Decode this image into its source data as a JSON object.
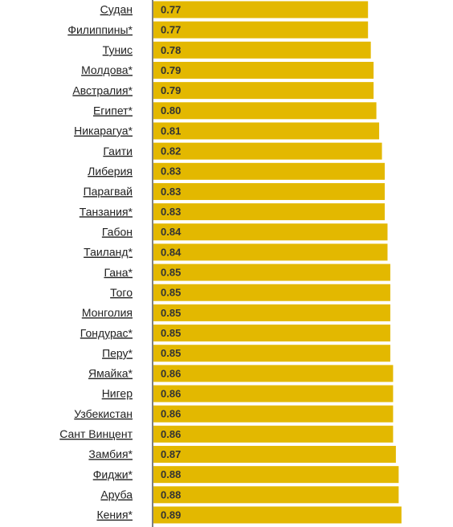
{
  "chart_data": {
    "type": "bar",
    "orientation": "horizontal",
    "categories": [
      "Судан",
      "Филиппины*",
      "Тунис",
      "Молдова*",
      "Австралия*",
      "Египет*",
      "Никарагуа*",
      "Гаити",
      "Либерия",
      "Парагвай",
      "Танзания*",
      "Габон",
      "Таиланд*",
      "Гана*",
      "Того",
      "Монголия",
      "Гондурас*",
      "Перу*",
      "Ямайка*",
      "Нигер",
      "Узбекистан",
      "Сант Винцент",
      "Замбия*",
      "Фиджи*",
      "Аруба",
      "Кения*"
    ],
    "values": [
      0.77,
      0.77,
      0.78,
      0.79,
      0.79,
      0.8,
      0.81,
      0.82,
      0.83,
      0.83,
      0.83,
      0.84,
      0.84,
      0.85,
      0.85,
      0.85,
      0.85,
      0.85,
      0.86,
      0.86,
      0.86,
      0.86,
      0.87,
      0.88,
      0.88,
      0.89
    ],
    "value_labels": [
      "0.77",
      "0.77",
      "0.78",
      "0.79",
      "0.79",
      "0.80",
      "0.81",
      "0.82",
      "0.83",
      "0.83",
      "0.83",
      "0.84",
      "0.84",
      "0.85",
      "0.85",
      "0.85",
      "0.85",
      "0.85",
      "0.86",
      "0.86",
      "0.86",
      "0.86",
      "0.87",
      "0.88",
      "0.88",
      "0.89"
    ],
    "color": "#e3b800",
    "xlim": [
      0,
      1
    ]
  }
}
